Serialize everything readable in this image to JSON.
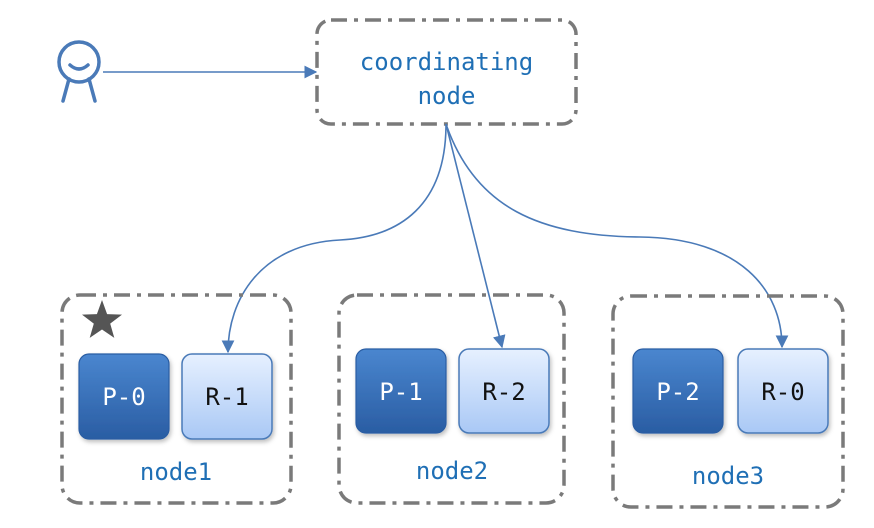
{
  "colors": {
    "accent": "#1f6fb5",
    "connector": "#4a7ab8",
    "box_border": "#7a7a7a",
    "primary_top": "#4a86cf",
    "primary_bottom": "#2a5da3",
    "replica_top": "#e6f0ff",
    "replica_bottom": "#a9c8f5",
    "star": "#555555"
  },
  "client": {
    "icon": "user-icon"
  },
  "coordinator": {
    "line1": "coordinating",
    "line2": "node"
  },
  "master_marker": {
    "icon": "star-icon"
  },
  "nodes": [
    {
      "label": "node1",
      "primary": "P-0",
      "replica": "R-1"
    },
    {
      "label": "node2",
      "primary": "P-1",
      "replica": "R-2"
    },
    {
      "label": "node3",
      "primary": "P-2",
      "replica": "R-0"
    }
  ]
}
